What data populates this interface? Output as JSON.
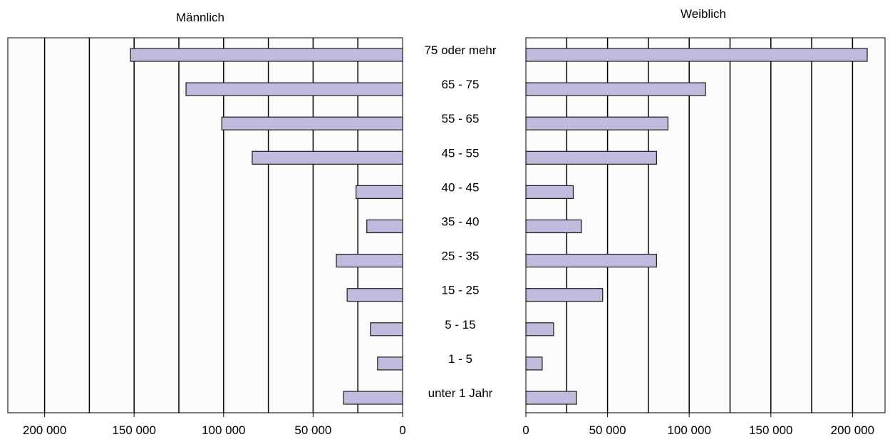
{
  "chart_data": {
    "type": "bar",
    "orientation": "horizontal",
    "layout": "back-to-back",
    "categories": [
      "75 oder mehr",
      "65 - 75",
      "55 - 65",
      "45 - 55",
      "40 - 45",
      "35 - 40",
      "25 - 35",
      "15 - 25",
      "5 - 15",
      "1 - 5",
      "unter 1 Jahr"
    ],
    "series": [
      {
        "name": "Männlich",
        "values": [
          152000,
          121000,
          101000,
          84000,
          26000,
          20000,
          37000,
          31000,
          18000,
          14000,
          33000
        ]
      },
      {
        "name": "Weiblich",
        "values": [
          209000,
          110000,
          87000,
          80000,
          29000,
          34000,
          80000,
          47000,
          17000,
          10000,
          31000
        ]
      }
    ],
    "x_axis": {
      "range": [
        0,
        225000
      ],
      "left_ticks": [
        "200 000",
        "150 000",
        "100 000",
        "50 000",
        "0"
      ],
      "right_ticks": [
        "0",
        "50 000",
        "100 000",
        "150 000",
        "200 000"
      ]
    },
    "grid": true,
    "colors": {
      "bar_fill": "#c0bbdd",
      "bar_stroke": "#1a1a1a",
      "grid": "#000000",
      "plot_background": "#fbfbfb"
    }
  }
}
